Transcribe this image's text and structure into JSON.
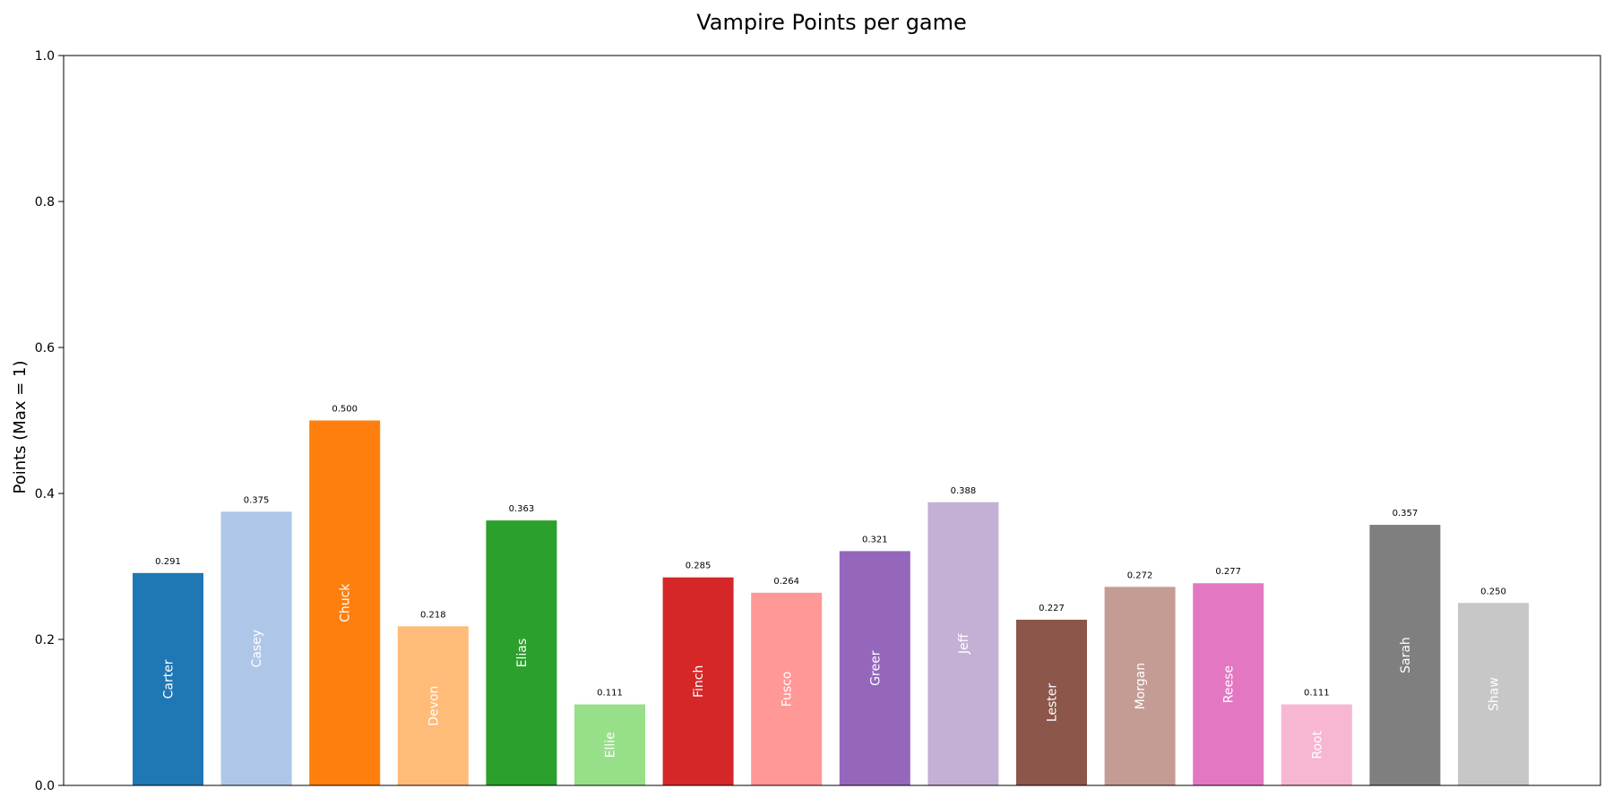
{
  "chart_data": {
    "type": "bar",
    "title": "Vampire Points per game",
    "xlabel": "",
    "ylabel": "Points (Max = 1)",
    "ylim": [
      0,
      1
    ],
    "yticks": [
      0.0,
      0.2,
      0.4,
      0.6,
      0.8,
      1.0
    ],
    "ytick_labels": [
      "0.0",
      "0.2",
      "0.4",
      "0.6",
      "0.8",
      "1.0"
    ],
    "grid": false,
    "categories": [
      "Carter",
      "Casey",
      "Chuck",
      "Devon",
      "Elias",
      "Ellie",
      "Finch",
      "Fusco",
      "Greer",
      "Jeff",
      "Lester",
      "Morgan",
      "Reese",
      "Root",
      "Sarah",
      "Shaw"
    ],
    "values": [
      0.291,
      0.375,
      0.5,
      0.218,
      0.363,
      0.111,
      0.285,
      0.264,
      0.321,
      0.388,
      0.227,
      0.272,
      0.277,
      0.111,
      0.357,
      0.25
    ],
    "value_labels": [
      "0.291",
      "0.375",
      "0.500",
      "0.218",
      "0.363",
      "0.111",
      "0.285",
      "0.264",
      "0.321",
      "0.388",
      "0.227",
      "0.272",
      "0.277",
      "0.111",
      "0.357",
      "0.250"
    ],
    "colors": [
      "#1f77b4",
      "#aec7e8",
      "#ff7f0e",
      "#ffbb78",
      "#2ca02c",
      "#98df8a",
      "#d62728",
      "#ff9896",
      "#9467bd",
      "#c5b0d5",
      "#8c564b",
      "#c49c94",
      "#e377c2",
      "#f7b6d2",
      "#7f7f7f",
      "#c7c7c7"
    ]
  }
}
